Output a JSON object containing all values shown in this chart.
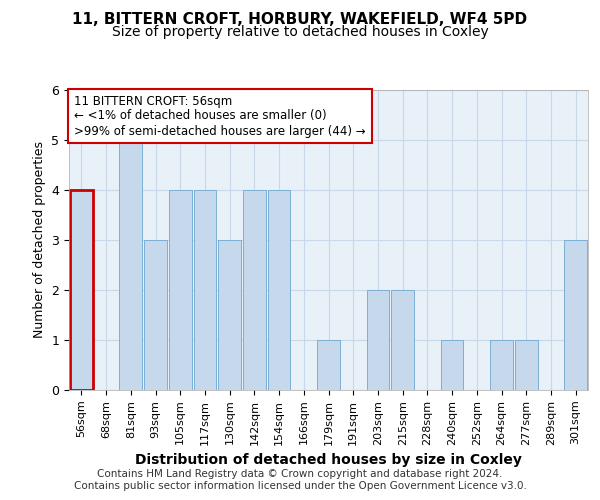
{
  "title": "11, BITTERN CROFT, HORBURY, WAKEFIELD, WF4 5PD",
  "subtitle": "Size of property relative to detached houses in Coxley",
  "xlabel": "Distribution of detached houses by size in Coxley",
  "ylabel": "Number of detached properties",
  "categories": [
    "56sqm",
    "68sqm",
    "81sqm",
    "93sqm",
    "105sqm",
    "117sqm",
    "130sqm",
    "142sqm",
    "154sqm",
    "166sqm",
    "179sqm",
    "191sqm",
    "203sqm",
    "215sqm",
    "228sqm",
    "240sqm",
    "252sqm",
    "264sqm",
    "277sqm",
    "289sqm",
    "301sqm"
  ],
  "values": [
    4,
    0,
    5,
    3,
    4,
    4,
    3,
    4,
    4,
    0,
    1,
    0,
    2,
    2,
    0,
    1,
    0,
    1,
    1,
    0,
    3
  ],
  "bar_color": "#c6d9ec",
  "bar_edge_color": "#7bafd4",
  "highlight_bar_index": 0,
  "highlight_edge_color": "#cc0000",
  "annotation_text": "11 BITTERN CROFT: 56sqm\n← <1% of detached houses are smaller (0)\n>99% of semi-detached houses are larger (44) →",
  "annotation_box_color": "#cc0000",
  "ylim": [
    0,
    6
  ],
  "yticks": [
    0,
    1,
    2,
    3,
    4,
    5,
    6
  ],
  "grid_color": "#c8d8e8",
  "background_color": "#e8f0f8",
  "footer_line1": "Contains HM Land Registry data © Crown copyright and database right 2024.",
  "footer_line2": "Contains public sector information licensed under the Open Government Licence v3.0.",
  "title_fontsize": 11,
  "subtitle_fontsize": 10,
  "xlabel_fontsize": 10,
  "ylabel_fontsize": 9,
  "tick_fontsize": 8,
  "footer_fontsize": 7.5
}
